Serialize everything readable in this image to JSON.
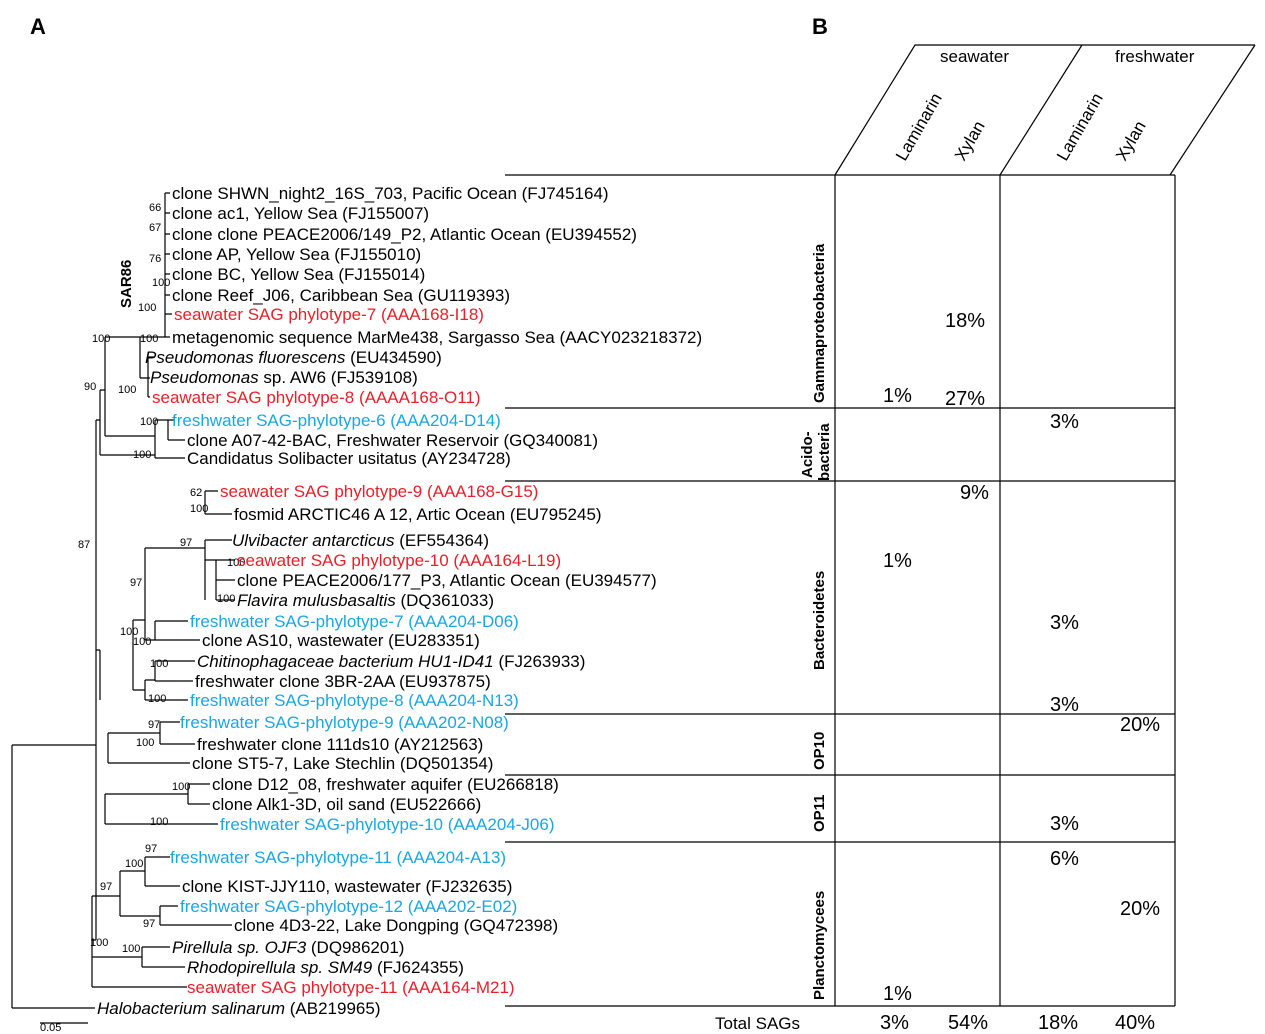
{
  "panels": {
    "a": "A",
    "b": "B"
  },
  "tree": {
    "clade_label": "SAR86",
    "scale": "0.05",
    "leaves": [
      {
        "name": "clone SHWN_night2_16S_703, Pacific Ocean",
        "acc": "(FJ745164)",
        "color": "#000000"
      },
      {
        "name": "clone ac1, Yellow Sea",
        "acc": "(FJ155007)",
        "color": "#000000"
      },
      {
        "name": "clone clone PEACE2006/149_P2, Atlantic Ocean",
        "acc": "(EU394552)",
        "color": "#000000"
      },
      {
        "name": "clone AP, Yellow Sea",
        "acc": "(FJ155010)",
        "color": "#000000"
      },
      {
        "name": "clone BC, Yellow Sea",
        "acc": "(FJ155014)",
        "color": "#000000"
      },
      {
        "name": "clone Reef_J06, Caribbean Sea",
        "acc": "(GU119393)",
        "color": "#000000"
      },
      {
        "name": "seawater SAG phylotype-7",
        "acc": "(AAA168-I18)",
        "color": "#e8202a"
      },
      {
        "name": "metagenomic sequence MarMe438, Sargasso Sea",
        "acc": "(AACY023218372)",
        "color": "#000000"
      },
      {
        "name": "Pseudomonas fluorescens",
        "acc": "(EU434590)",
        "color": "#000000",
        "italic": "Pseudomonas fluorescens"
      },
      {
        "name": "Pseudomonas sp. AW6",
        "acc": "(FJ539108)",
        "color": "#000000",
        "italic": "Pseudomonas"
      },
      {
        "name": "seawater SAG phylotype-8",
        "acc": "(AAAA168-O11)",
        "color": "#e8202a"
      },
      {
        "name": "freshwater SAG-phylotype-6",
        "acc": "(AAA204-D14)",
        "color": "#1aa7e0"
      },
      {
        "name": "clone A07-42-BAC, Freshwater Reservoir",
        "acc": "(GQ340081)",
        "color": "#000000"
      },
      {
        "name": "Candidatus Solibacter usitatus",
        "acc": "(AY234728)",
        "color": "#000000"
      },
      {
        "name": "seawater SAG phylotype-9",
        "acc": "(AAA168-G15)",
        "color": "#e8202a"
      },
      {
        "name": "fosmid ARCTIC46 A 12, Artic Ocean",
        "acc": "(EU795245)",
        "color": "#000000"
      },
      {
        "name": "Ulvibacter antarcticus",
        "acc": "(EF554364)",
        "color": "#000000",
        "italic": "Ulvibacter antarcticus"
      },
      {
        "name": "seawater SAG phylotype-10",
        "acc": "(AAA164-L19)",
        "color": "#e8202a"
      },
      {
        "name": "clone PEACE2006/177_P3, Atlantic Ocean",
        "acc": "(EU394577)",
        "color": "#000000"
      },
      {
        "name": "Flavira mulusbasaltis",
        "acc": "(DQ361033)",
        "color": "#000000",
        "italic": "Flavira mulusbasaltis"
      },
      {
        "name": "freshwater SAG-phylotype-7",
        "acc": "(AAA204-D06)",
        "color": "#1aa7e0"
      },
      {
        "name": "clone AS10, wastewater",
        "acc": "(EU283351)",
        "color": "#000000"
      },
      {
        "name": "Chitinophagaceae bacterium HU1-ID41",
        "acc": "(FJ263933)",
        "color": "#000000",
        "italic": "Chitinophagaceae bacterium HU1-ID41"
      },
      {
        "name": "freshwater clone 3BR-2AA",
        "acc": "(EU937875)",
        "color": "#000000"
      },
      {
        "name": "freshwater SAG-phylotype-8",
        "acc": "(AAA204-N13)",
        "color": "#1aa7e0"
      },
      {
        "name": "freshwater SAG-phylotype-9",
        "acc": "(AAA202-N08)",
        "color": "#1aa7e0"
      },
      {
        "name": "freshwater clone 111ds10",
        "acc": "(AY212563)",
        "color": "#000000"
      },
      {
        "name": "clone ST5-7, Lake Stechlin",
        "acc": "(DQ501354)",
        "color": "#000000"
      },
      {
        "name": "clone D12_08, freshwater aquifer",
        "acc": "(EU266818)",
        "color": "#000000"
      },
      {
        "name": "clone Alk1-3D, oil sand",
        "acc": "(EU522666)",
        "color": "#000000"
      },
      {
        "name": "freshwater SAG-phylotype-10",
        "acc": "(AAA204-J06)",
        "color": "#1aa7e0"
      },
      {
        "name": "freshwater SAG-phylotype-11",
        "acc": "(AAA204-A13)",
        "color": "#1aa7e0"
      },
      {
        "name": "clone KIST-JJY110, wastewater",
        "acc": "(FJ232635)",
        "color": "#000000"
      },
      {
        "name": "freshwater SAG-phylotype-12",
        "acc": "(AAA202-E02)",
        "color": "#1aa7e0"
      },
      {
        "name": "clone 4D3-22, Lake Dongping",
        "acc": "(GQ472398)",
        "color": "#000000"
      },
      {
        "name": "Pirellula sp. OJF3",
        "acc": "(DQ986201)",
        "color": "#000000",
        "italic": "Pirellula sp. OJF3"
      },
      {
        "name": "Rhodopirellula sp. SM49",
        "acc": "(FJ624355)",
        "color": "#000000",
        "italic": "Rhodopirellula sp. SM49"
      },
      {
        "name": "seawater SAG phylotype-11",
        "acc": "(AAA164-M21)",
        "color": "#e8202a"
      },
      {
        "name": "Halobacterium salinarum",
        "acc": "(AB219965)",
        "color": "#000000",
        "italic": "Halobacterium salinarum"
      }
    ],
    "bootstrap": [
      "66",
      "67",
      "76",
      "100",
      "100",
      "100",
      "100",
      "90",
      "100",
      "100",
      "100",
      "62",
      "100",
      "97",
      "100",
      "97",
      "100",
      "100",
      "100",
      "100",
      "100",
      "97",
      "100",
      "100",
      "100",
      "97",
      "100",
      "97",
      "97",
      "100",
      "100",
      "87"
    ]
  },
  "table": {
    "habitats": [
      "seawater",
      "freshwater"
    ],
    "substrates": [
      "Laminarin",
      "Xylan",
      "Laminarin",
      "Xylan"
    ],
    "groups": [
      {
        "name": "Gammaproteobacteria",
        "values": [
          "1%",
          "18%",
          "27%"
        ]
      },
      {
        "name": "Acido-",
        "name2": "bacteria",
        "values": [
          "3%"
        ]
      },
      {
        "name": "Bacteroidetes",
        "values": [
          "9%",
          "1%",
          "3%",
          "3%"
        ]
      },
      {
        "name": "OP10",
        "values": [
          "20%"
        ]
      },
      {
        "name": "OP11",
        "values": [
          "3%"
        ]
      },
      {
        "name": "Planctomycees",
        "values": [
          "6%",
          "20%",
          "1%"
        ]
      }
    ],
    "total_label": "Total SAGs",
    "totals": [
      "3%",
      "54%",
      "18%",
      "40%"
    ]
  }
}
